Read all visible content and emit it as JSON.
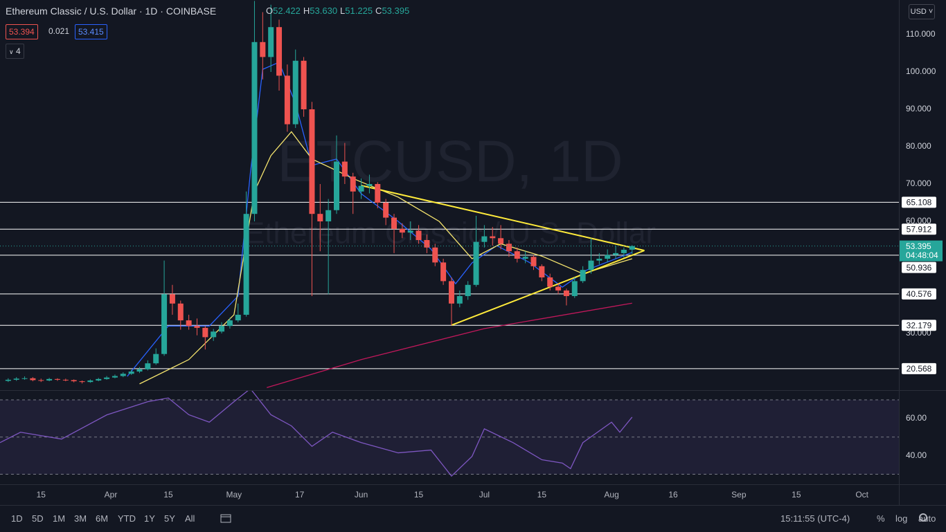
{
  "header": {
    "symbol": "Ethereum Classic / U.S. Dollar · 1D · COINBASE",
    "ohlc": [
      {
        "label": "O",
        "value": "52.422"
      },
      {
        "label": "H",
        "value": "53.630"
      },
      {
        "label": "L",
        "value": "51.225"
      },
      {
        "label": "C",
        "value": "53.395"
      }
    ],
    "indicators": [
      "53.394",
      "0.021",
      "53.415"
    ],
    "collapse": "4"
  },
  "watermark": {
    "symbol": "ETCUSD, 1D",
    "name": "Ethereum Classic / U.S. Dollar"
  },
  "currency": "USD",
  "countdown": "04:48:04",
  "toolbar": {
    "ranges": [
      "1D",
      "5D",
      "1M",
      "3M",
      "6M",
      "YTD",
      "1Y",
      "5Y",
      "All"
    ],
    "time": "15:11:55 (UTC-4)",
    "options": [
      "%",
      "log",
      "auto"
    ]
  },
  "chart_data": [
    {
      "type": "candlestick",
      "up_color": "#26a69a",
      "down_color": "#ef5350",
      "xlim": [
        "Mar 5",
        "Oct 10"
      ],
      "ylim": [
        14.81,
        119.26
      ],
      "xticks": [
        {
          "value": "Mar 15",
          "label": "15"
        },
        {
          "value": "Apr 1",
          "label": "Apr"
        },
        {
          "value": "Apr 15",
          "label": "15"
        },
        {
          "value": "May 1",
          "label": "May"
        },
        {
          "value": "May 17",
          "label": "17"
        },
        {
          "value": "Jun 1",
          "label": "Jun"
        },
        {
          "value": "Jun 15",
          "label": "15"
        },
        {
          "value": "Jul 1",
          "label": "Jul"
        },
        {
          "value": "Jul 15",
          "label": "15"
        },
        {
          "value": "Aug 1",
          "label": "Aug"
        },
        {
          "value": "Aug 16",
          "label": "16"
        },
        {
          "value": "Sep 1",
          "label": "Sep"
        },
        {
          "value": "Sep 15",
          "label": "15"
        },
        {
          "value": "Oct 1",
          "label": "Oct"
        }
      ],
      "yticks": [
        {
          "value": 30,
          "label": "30.000"
        },
        {
          "value": 60,
          "label": "60.000"
        },
        {
          "value": 70,
          "label": "70.000"
        },
        {
          "value": 80,
          "label": "80.000"
        },
        {
          "value": 90,
          "label": "90.000"
        },
        {
          "value": 100,
          "label": "100.000"
        },
        {
          "value": 110,
          "label": "110.000"
        }
      ],
      "levels": [
        65.108,
        57.912,
        50.936,
        40.576,
        32.179,
        20.568
      ],
      "current_price": 53.395,
      "candles": [
        [
          "Mar 7",
          17.3,
          18.0,
          17.0,
          17.6
        ],
        [
          "Mar 9",
          17.6,
          18.3,
          17.3,
          17.9
        ],
        [
          "Mar 11",
          17.9,
          18.5,
          17.6,
          18.0
        ],
        [
          "Mar 13",
          18.0,
          18.3,
          17.2,
          17.5
        ],
        [
          "Mar 15",
          17.5,
          17.9,
          17.0,
          17.4
        ],
        [
          "Mar 17",
          17.4,
          18.1,
          17.2,
          17.8
        ],
        [
          "Mar 19",
          17.8,
          18.0,
          17.3,
          17.6
        ],
        [
          "Mar 21",
          17.6,
          17.9,
          17.2,
          17.5
        ],
        [
          "Mar 23",
          17.5,
          17.7,
          16.9,
          17.2
        ],
        [
          "Mar 25",
          17.2,
          17.4,
          16.6,
          17.0
        ],
        [
          "Mar 27",
          17.0,
          17.7,
          16.8,
          17.4
        ],
        [
          "Mar 29",
          17.4,
          18.1,
          17.2,
          17.8
        ],
        [
          "Mar 31",
          17.8,
          18.6,
          17.6,
          18.2
        ],
        [
          "Apr 2",
          18.2,
          19.0,
          18.0,
          18.6
        ],
        [
          "Apr 4",
          18.6,
          19.6,
          18.3,
          19.2
        ],
        [
          "Apr 6",
          19.2,
          20.3,
          18.9,
          19.8
        ],
        [
          "Apr 8",
          19.8,
          21.0,
          19.4,
          20.4
        ],
        [
          "Apr 10",
          20.4,
          22.8,
          20.1,
          22.0
        ],
        [
          "Apr 12",
          22.0,
          26.0,
          21.6,
          24.5
        ],
        [
          "Apr 14",
          24.5,
          49.5,
          24.0,
          40.5
        ],
        [
          "Apr 16",
          40.5,
          43.0,
          35.0,
          38.0
        ],
        [
          "Apr 18",
          38.0,
          38.8,
          31.0,
          33.5
        ],
        [
          "Apr 20",
          33.5,
          35.0,
          31.0,
          32.0
        ],
        [
          "Apr 22",
          32.0,
          34.0,
          29.5,
          31.5
        ],
        [
          "Apr 24",
          31.5,
          32.0,
          25.7,
          29.0
        ],
        [
          "Apr 26",
          29.0,
          31.2,
          28.0,
          30.5
        ],
        [
          "Apr 28",
          30.5,
          33.0,
          30.0,
          32.0
        ],
        [
          "Apr 30",
          32.0,
          34.2,
          31.3,
          33.5
        ],
        [
          "May 2",
          33.5,
          38.0,
          33.0,
          35.0
        ],
        [
          "May 4",
          35.0,
          68.0,
          34.5,
          62.0
        ],
        [
          "May 6",
          62.0,
          119.0,
          60.0,
          108.0
        ],
        [
          "May 8",
          108.0,
          116.0,
          98.0,
          104.0
        ],
        [
          "May 10",
          104.0,
          118.0,
          100.0,
          112.0
        ],
        [
          "May 12",
          112.0,
          114.0,
          95.0,
          99.0
        ],
        [
          "May 14",
          99.0,
          102.0,
          84.0,
          86.0
        ],
        [
          "May 16",
          86.0,
          106.0,
          85.0,
          103.0
        ],
        [
          "May 18",
          103.0,
          104.0,
          88.0,
          90.0
        ],
        [
          "May 20",
          90.0,
          92.0,
          40.0,
          62.0
        ],
        [
          "May 22",
          62.0,
          70.0,
          52.0,
          60.0
        ],
        [
          "May 24",
          60.0,
          66.0,
          40.5,
          63.0
        ],
        [
          "May 26",
          63.0,
          83.0,
          62.0,
          76.0
        ],
        [
          "May 28",
          76.0,
          81.0,
          70.0,
          72.0
        ],
        [
          "May 30",
          72.0,
          73.0,
          62.0,
          68.0
        ],
        [
          "Jun 1",
          68.0,
          71.5,
          66.0,
          69.5
        ],
        [
          "Jun 3",
          69.5,
          72.5,
          67.5,
          70.0
        ],
        [
          "Jun 5",
          70.0,
          70.5,
          63.5,
          65.0
        ],
        [
          "Jun 7",
          65.0,
          66.0,
          59.0,
          61.0
        ],
        [
          "Jun 9",
          61.0,
          62.0,
          51.5,
          58.0
        ],
        [
          "Jun 11",
          58.0,
          59.5,
          55.5,
          57.0
        ],
        [
          "Jun 13",
          57.0,
          60.0,
          55.0,
          57.5
        ],
        [
          "Jun 15",
          57.5,
          59.0,
          54.0,
          55.0
        ],
        [
          "Jun 17",
          55.0,
          56.5,
          51.5,
          53.0
        ],
        [
          "Jun 19",
          53.0,
          54.0,
          48.0,
          49.0
        ],
        [
          "Jun 21",
          49.0,
          50.0,
          43.0,
          44.0
        ],
        [
          "Jun 23",
          44.0,
          45.0,
          32.2,
          38.0
        ],
        [
          "Jun 25",
          38.0,
          41.5,
          37.0,
          40.0
        ],
        [
          "Jun 27",
          40.0,
          44.0,
          39.0,
          43.0
        ],
        [
          "Jun 29",
          43.0,
          61.5,
          42.5,
          54.5
        ],
        [
          "Jul 1",
          54.5,
          59.0,
          53.0,
          56.0
        ],
        [
          "Jul 3",
          56.0,
          58.5,
          53.5,
          55.5
        ],
        [
          "Jul 5",
          55.5,
          59.0,
          52.5,
          54.0
        ],
        [
          "Jul 7",
          54.0,
          55.0,
          50.5,
          52.0
        ],
        [
          "Jul 9",
          52.0,
          53.0,
          49.0,
          50.0
        ],
        [
          "Jul 11",
          50.0,
          52.0,
          48.8,
          50.5
        ],
        [
          "Jul 13",
          50.5,
          51.0,
          47.0,
          48.0
        ],
        [
          "Jul 15",
          48.0,
          48.5,
          44.0,
          45.0
        ],
        [
          "Jul 17",
          45.0,
          46.0,
          41.5,
          42.5
        ],
        [
          "Jul 19",
          42.5,
          43.5,
          40.5,
          41.5
        ],
        [
          "Jul 21",
          41.5,
          42.0,
          37.5,
          40.0
        ],
        [
          "Jul 23",
          40.0,
          45.0,
          39.5,
          44.0
        ],
        [
          "Jul 25",
          44.0,
          48.0,
          43.5,
          47.0
        ],
        [
          "Jul 27",
          47.0,
          55.5,
          46.0,
          49.5
        ],
        [
          "Jul 29",
          49.5,
          51.5,
          48.5,
          50.0
        ],
        [
          "Jul 31",
          50.0,
          52.5,
          49.0,
          51.0
        ],
        [
          "Aug 2",
          51.0,
          53.5,
          50.0,
          51.5
        ],
        [
          "Aug 4",
          51.5,
          53.0,
          50.3,
          52.4
        ],
        [
          "Aug 6",
          52.422,
          53.63,
          51.225,
          53.395
        ]
      ],
      "series": [
        {
          "color": "#2962ff",
          "x": [
            "Apr 5",
            "Apr 15",
            "Apr 25",
            "May 2",
            "May 5",
            "May 8",
            "May 12",
            "May 16",
            "May 20",
            "May 26",
            "Jun 1",
            "Jun 10",
            "Jun 18",
            "Jun 24",
            "Jun 28",
            "Jul 4",
            "Jul 12",
            "Jul 20",
            "Jul 26",
            "Aug 6"
          ],
          "values": [
            18.5,
            32,
            32,
            40,
            73,
            100.7,
            102.6,
            91.5,
            75,
            76.7,
            67.4,
            60,
            52.6,
            43.3,
            48.9,
            53.5,
            49,
            42.4,
            47,
            51.7
          ]
        },
        {
          "color": "#f5e46e",
          "x": [
            "Apr 8",
            "Apr 20",
            "May 1",
            "May 6",
            "May 10",
            "May 15",
            "May 20",
            "May 31",
            "Jun 10",
            "Jun 20",
            "Jun 28",
            "Jul 5",
            "Jul 15",
            "Jul 25",
            "Aug 6"
          ],
          "values": [
            16.5,
            23,
            35,
            68,
            77.6,
            84,
            76.7,
            71,
            66.5,
            60,
            50,
            54,
            50.7,
            46,
            50
          ]
        },
        {
          "color": "#c2185b",
          "x": [
            "May 9",
            "Jun 1",
            "Jul 1",
            "Aug 6"
          ],
          "values": [
            15.5,
            23,
            31.3,
            38.1
          ]
        }
      ],
      "trendlines": {
        "color": "#ffeb3b",
        "lines": [
          {
            "x": [
              "Jun 1",
              "Aug 9"
            ],
            "values": [
              69.6,
              52.2
            ]
          },
          {
            "x": [
              "Jun 23",
              "Aug 9"
            ],
            "values": [
              32.2,
              52.2
            ]
          }
        ]
      }
    },
    {
      "type": "line",
      "color": "#7e57c2",
      "ylim": [
        24.6,
        75.2
      ],
      "yticks": [
        {
          "value": 60,
          "label": "60.00"
        },
        {
          "value": 40,
          "label": "40.00"
        }
      ],
      "levels": [
        70,
        50,
        30
      ],
      "x": [
        "Mar 5",
        "Mar 10",
        "Mar 20",
        "Mar 31",
        "Apr 10",
        "Apr 15",
        "Apr 20",
        "Apr 25",
        "May 1",
        "May 5",
        "May 10",
        "May 15",
        "May 20",
        "May 25",
        "Jun 1",
        "Jun 10",
        "Jun 18",
        "Jun 23",
        "Jun 28",
        "Jul 1",
        "Jul 8",
        "Jul 15",
        "Jul 20",
        "Jul 22",
        "Jul 25",
        "Aug 1",
        "Aug 3",
        "Aug 6"
      ],
      "values": [
        47,
        52.6,
        48.9,
        61.9,
        69,
        71,
        62,
        58,
        69,
        76,
        62,
        56,
        45,
        52.6,
        47,
        41.5,
        43,
        29,
        39.6,
        54.4,
        47,
        37.8,
        36,
        33,
        47,
        58,
        52.6,
        60.7
      ]
    }
  ]
}
